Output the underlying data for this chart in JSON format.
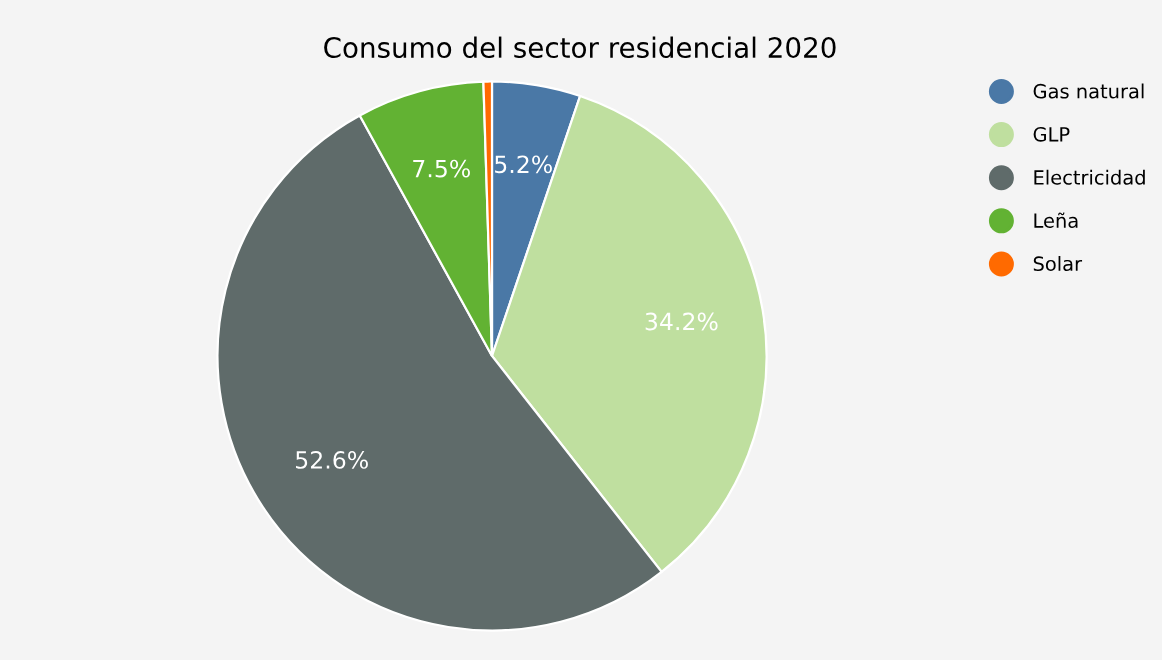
{
  "chart_data": {
    "type": "pie",
    "title": "Consumo del sector residencial 2020",
    "categories": [
      "Gas natural",
      "GLP",
      "Electricidad",
      "Leña",
      "Solar"
    ],
    "values": [
      5.2,
      34.2,
      52.6,
      7.5,
      0.5
    ],
    "value_labels": [
      "5.2%",
      "34.2%",
      "52.6%",
      "7.5%",
      null
    ],
    "colors": [
      "#4a78a6",
      "#bfdf9f",
      "#5f6b6a",
      "#62b233",
      "#ff6a00"
    ],
    "legend": "right"
  }
}
